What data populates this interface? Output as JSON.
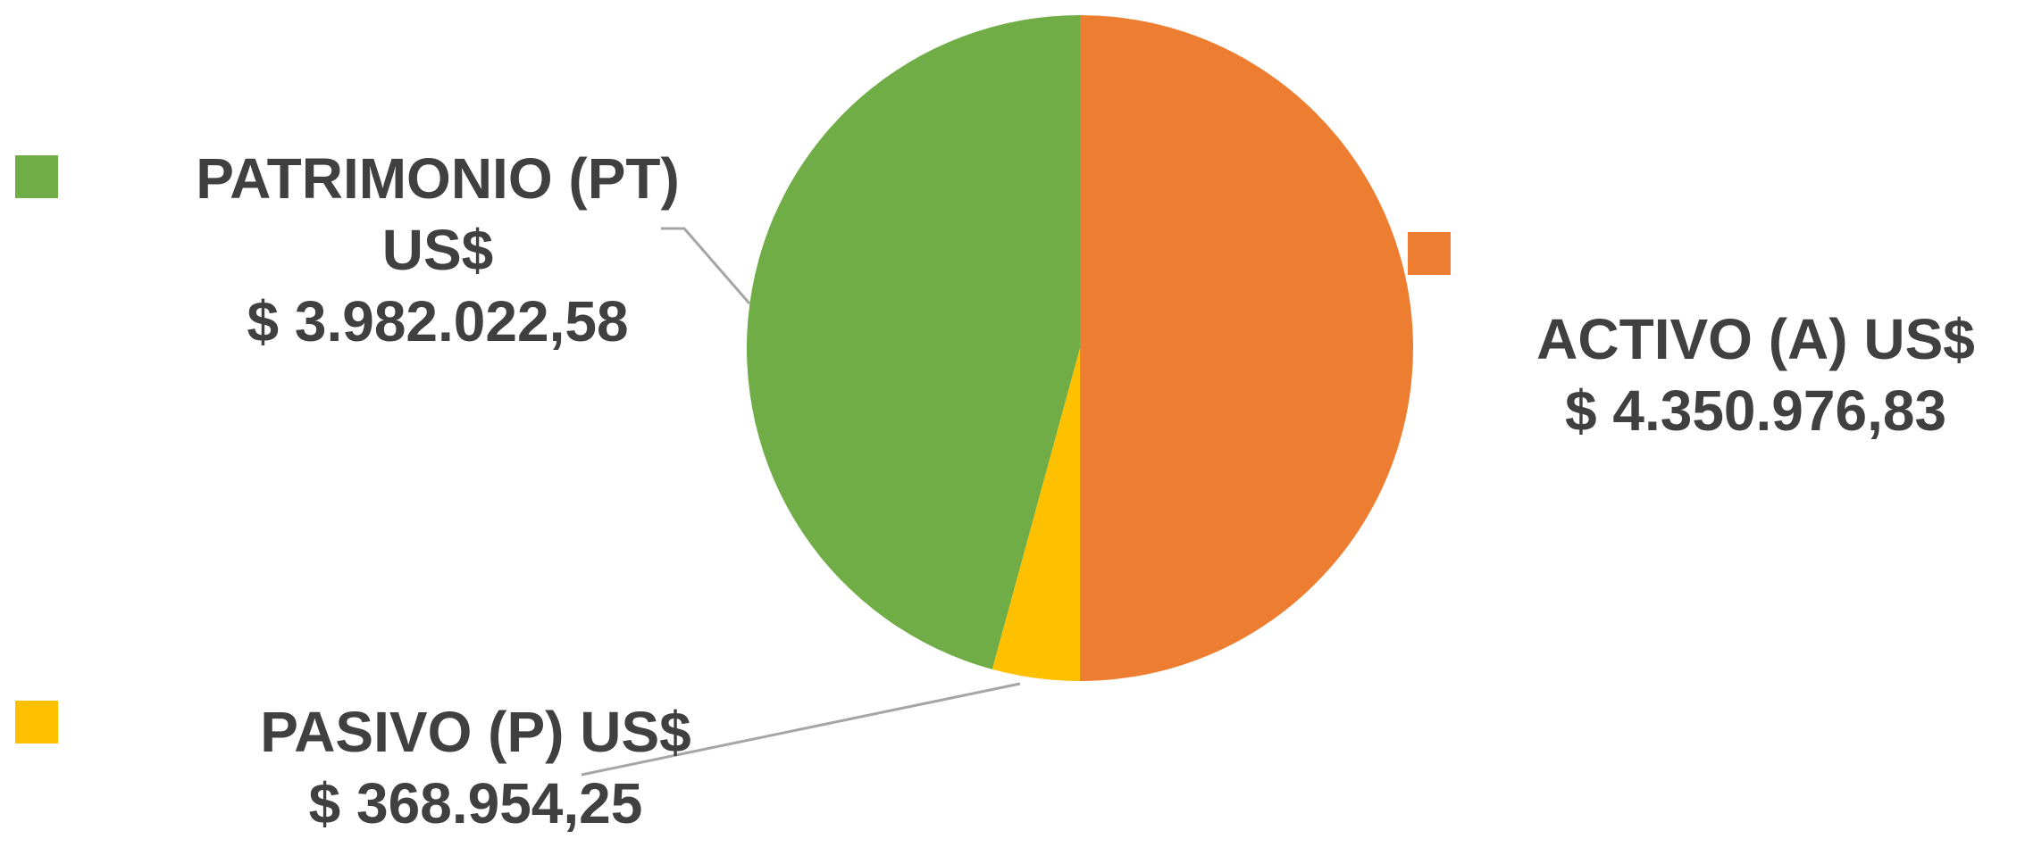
{
  "chart_data": {
    "type": "pie",
    "categories": [
      "ACTIVO (A) US$",
      "PASIVO (P) US$",
      "PATRIMONIO (PT) US$"
    ],
    "values": [
      4350976.83,
      368954.25,
      3982022.58
    ],
    "value_labels": [
      "$ 4.350.976,83",
      "$ 368.954,25",
      "$ 3.982.022,58"
    ],
    "colors": [
      "#ed7d31",
      "#ffc000",
      "#70ad47"
    ]
  }
}
